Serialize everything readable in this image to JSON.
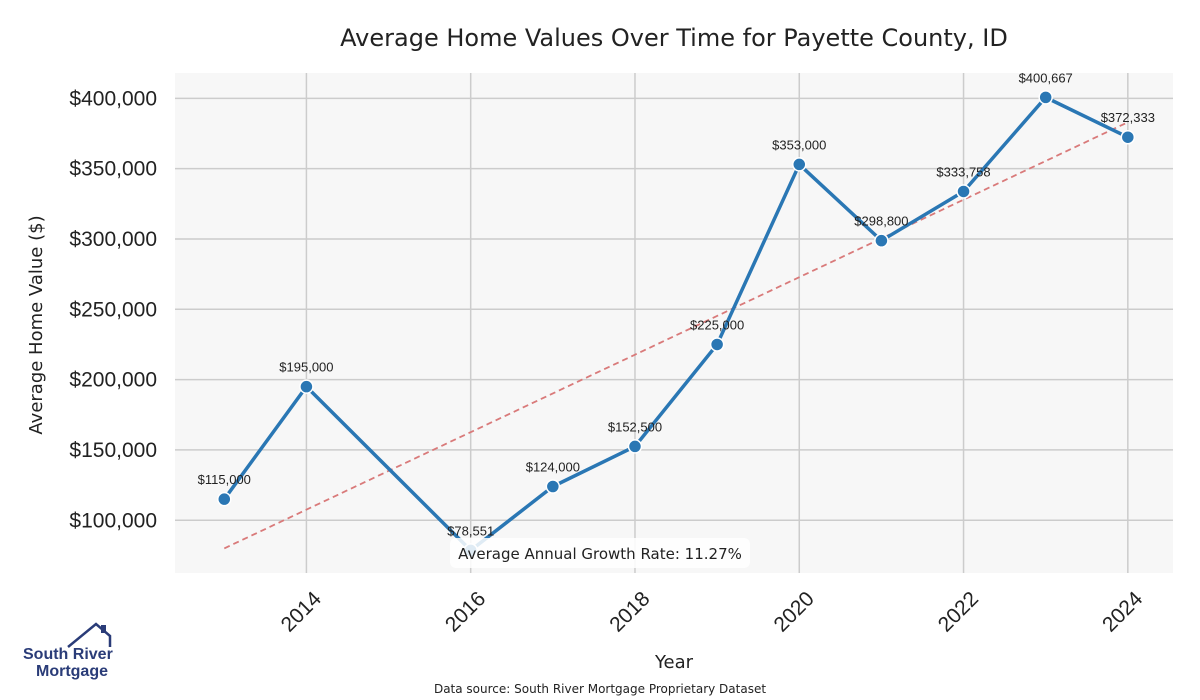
{
  "chart_data": {
    "type": "line",
    "title": "Average Home Values Over Time for Payette County, ID",
    "xlabel": "Year",
    "ylabel": "Average Home Value ($)",
    "x": [
      2013,
      2014,
      2016,
      2017,
      2018,
      2019,
      2020,
      2021,
      2022,
      2023,
      2024
    ],
    "values": [
      115000,
      195000,
      78551,
      124000,
      152500,
      225000,
      353000,
      298800,
      333758,
      400667,
      372333
    ],
    "data_labels": [
      "$115,000",
      "$195,000",
      "$78,551",
      "$124,000",
      "$152,500",
      "$225,000",
      "$353,000",
      "$298,800",
      "$333,758",
      "$400,667",
      "$372,333"
    ],
    "xticks": [
      2014,
      2016,
      2018,
      2020,
      2022,
      2024
    ],
    "yticks": [
      "$100,000",
      "$150,000",
      "$200,000",
      "$250,000",
      "$300,000",
      "$350,000",
      "$400,000"
    ],
    "ytick_values": [
      100000,
      150000,
      200000,
      250000,
      300000,
      350000,
      400000
    ],
    "xlim": [
      2012.4,
      2024.55
    ],
    "ylim": [
      62500,
      418000
    ],
    "trendline": {
      "x": [
        2013,
        2024
      ],
      "y": [
        80000,
        383000
      ],
      "style": "dashed",
      "color": "#d97a7a"
    },
    "annotation": "Average Annual Growth Rate: 11.27%",
    "grid": true,
    "colors": {
      "line": "#2a77b4",
      "trend": "#d97a7a",
      "plot_bg": "#f7f7f7",
      "grid": "#cccccc"
    }
  },
  "footer": {
    "source": "Data source: South River Mortgage Proprietary Dataset"
  },
  "logo": {
    "line1": "South River",
    "line2": "Mortgage"
  }
}
